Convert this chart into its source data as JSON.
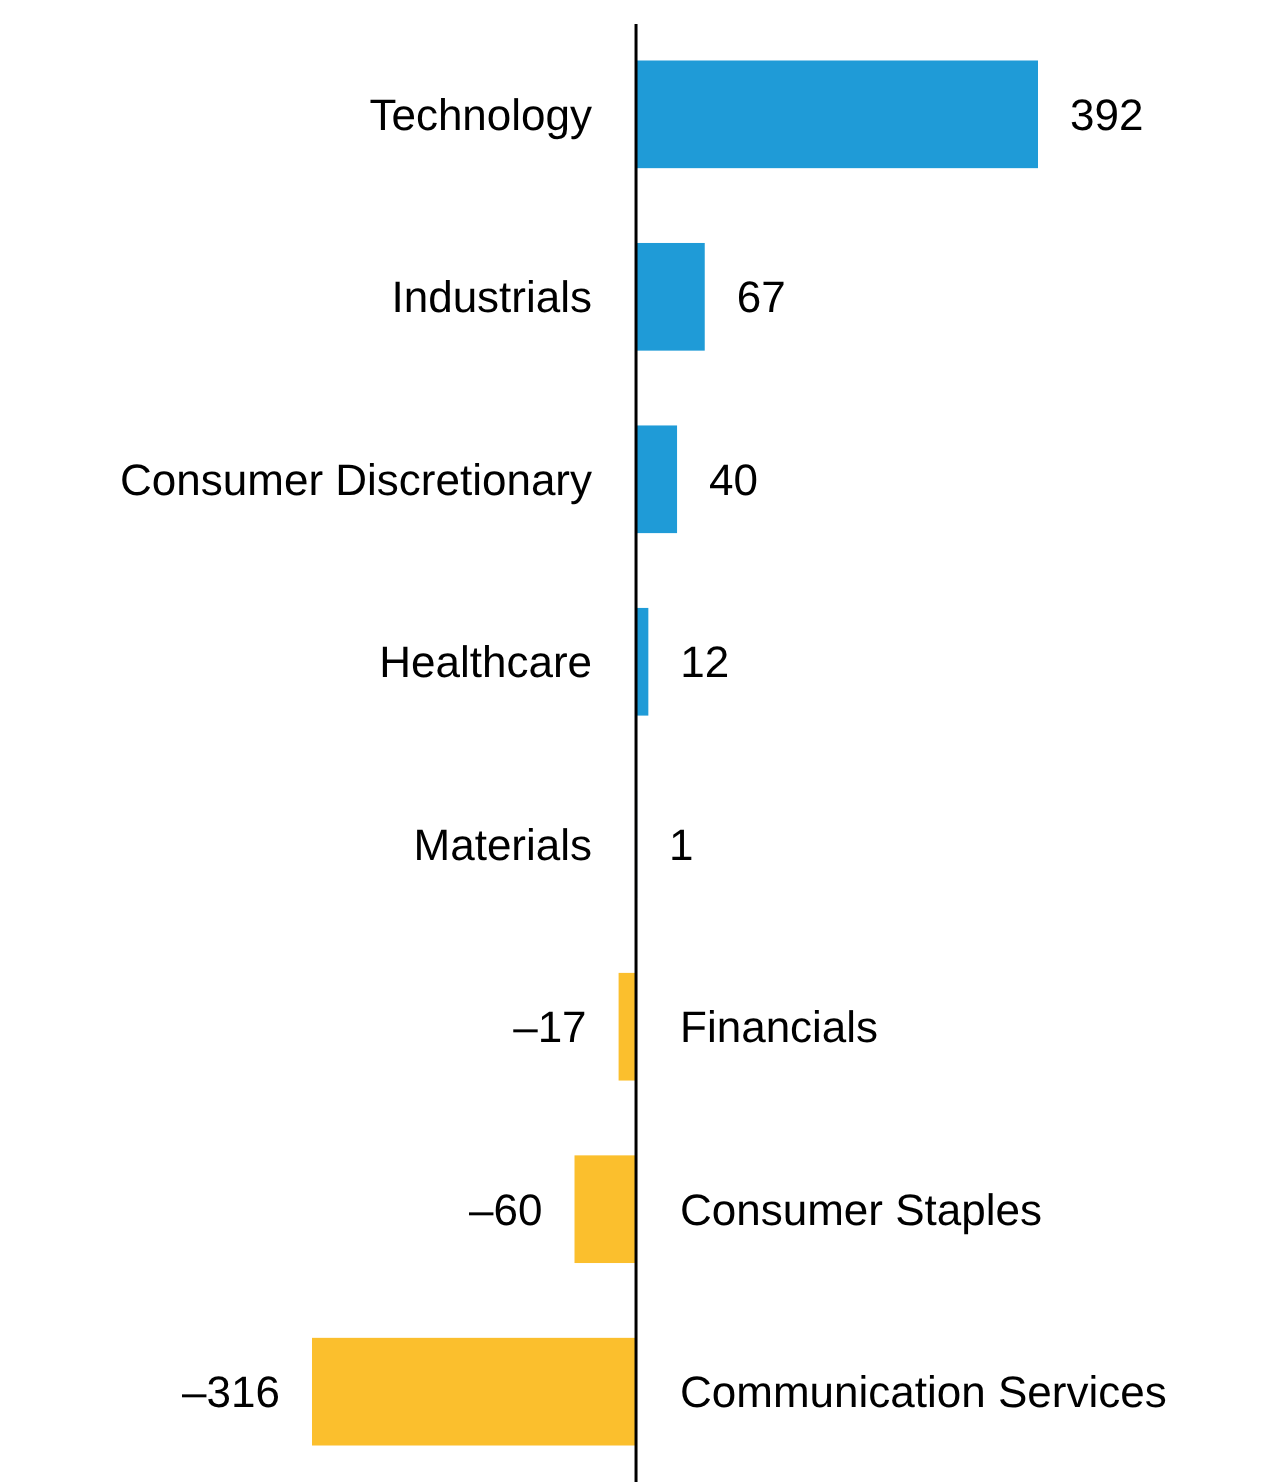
{
  "chart_data": {
    "type": "bar",
    "orientation": "horizontal",
    "categories": [
      "Technology",
      "Industrials",
      "Consumer Discretionary",
      "Healthcare",
      "Materials",
      "Financials",
      "Consumer Staples",
      "Communication Services"
    ],
    "values": [
      392,
      67,
      40,
      12,
      1,
      -17,
      -60,
      -316
    ],
    "value_labels": [
      "392",
      "67",
      "40",
      "12",
      "1",
      "–17",
      "–60",
      "–316"
    ],
    "colors": [
      "#1f9bd7",
      "#1f9bd7",
      "#1f9bd7",
      "#1f9bd7",
      "#1f9bd7",
      "#fbbf2d",
      "#fbbf2d",
      "#fbbf2d"
    ]
  }
}
